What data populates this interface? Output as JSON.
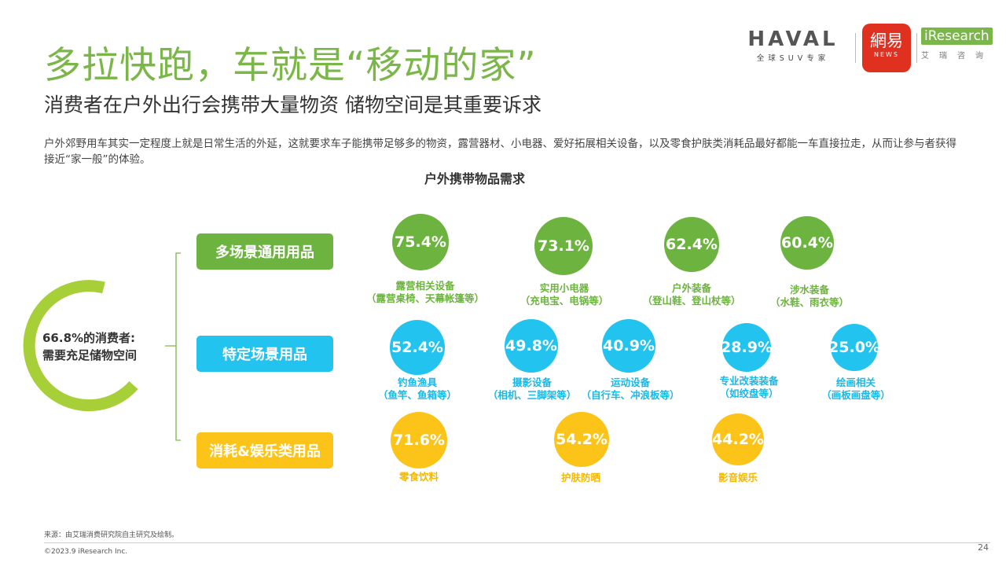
{
  "header": {
    "title": "多拉快跑，车就是“移动的家”",
    "subtitle": "消费者在户外出行会携带大量物资 储物空间是其重要诉求",
    "description": "户外郊野用车其实一定程度上就是日常生活的外延，这就要求车子能携带足够多的物资，露营器材、小电器、爱好拓展相关设备，以及零食护肤类消耗品最好都能一车直接拉走，从而让参与者获得接近“家一般”的体验。"
  },
  "logos": {
    "haval_word": "HAVAL",
    "haval_sub": "全球SUV专家",
    "netease_word": "網易",
    "netease_sub": "NEWS",
    "iresearch_word": "iResearch",
    "iresearch_sub": "艾瑞咨询"
  },
  "chart": {
    "title": "户外携带物品需求",
    "summary_line1": "66.8%的消费者:",
    "summary_line2": "需要充足储物空间",
    "categories": [
      "多场景通用用品",
      "特定场景用品",
      "消耗&娱乐类用品"
    ]
  },
  "chart_data": {
    "type": "bubble",
    "title": "户外携带物品需求",
    "overall": {
      "value": 66.8,
      "unit": "%",
      "label": "66.8%的消费者: 需要充足储物空间"
    },
    "groups": [
      {
        "name": "多场景通用用品",
        "color": "#6db33f",
        "items": [
          {
            "value": "75.4%",
            "name": "露营相关设备",
            "detail": "（露营桌椅、天幕帐篷等）"
          },
          {
            "value": "73.1%",
            "name": "实用小电器",
            "detail": "（充电宝、电锅等）"
          },
          {
            "value": "62.4%",
            "name": "户外装备",
            "detail": "（登山鞋、登山杖等）"
          },
          {
            "value": "60.4%",
            "name": "涉水装备",
            "detail": "（水鞋、雨衣等）"
          }
        ]
      },
      {
        "name": "特定场景用品",
        "color": "#22c3ee",
        "items": [
          {
            "value": "52.4%",
            "name": "钓鱼渔具",
            "detail": "（鱼竿、鱼箱等）"
          },
          {
            "value": "49.8%",
            "name": "摄影设备",
            "detail": "（相机、三脚架等）"
          },
          {
            "value": "40.9%",
            "name": "运动设备",
            "detail": "（自行车、冲浪板等）"
          },
          {
            "value": "28.9%",
            "name": "专业改装装备",
            "detail": "（如绞盘等）"
          },
          {
            "value": "25.0%",
            "name": "绘画相关",
            "detail": "（画板画盘等）"
          }
        ]
      },
      {
        "name": "消耗&娱乐类用品",
        "color": "#fcc419",
        "items": [
          {
            "value": "71.6%",
            "name": "零食饮料",
            "detail": ""
          },
          {
            "value": "54.2%",
            "name": "护肤防晒",
            "detail": ""
          },
          {
            "value": "44.2%",
            "name": "影音娱乐",
            "detail": ""
          }
        ]
      }
    ]
  },
  "footer": {
    "source": "来源：由艾瑞消费研究院自主研究及绘制。",
    "copyright": "©2023.9 iResearch Inc.",
    "page": "24"
  }
}
